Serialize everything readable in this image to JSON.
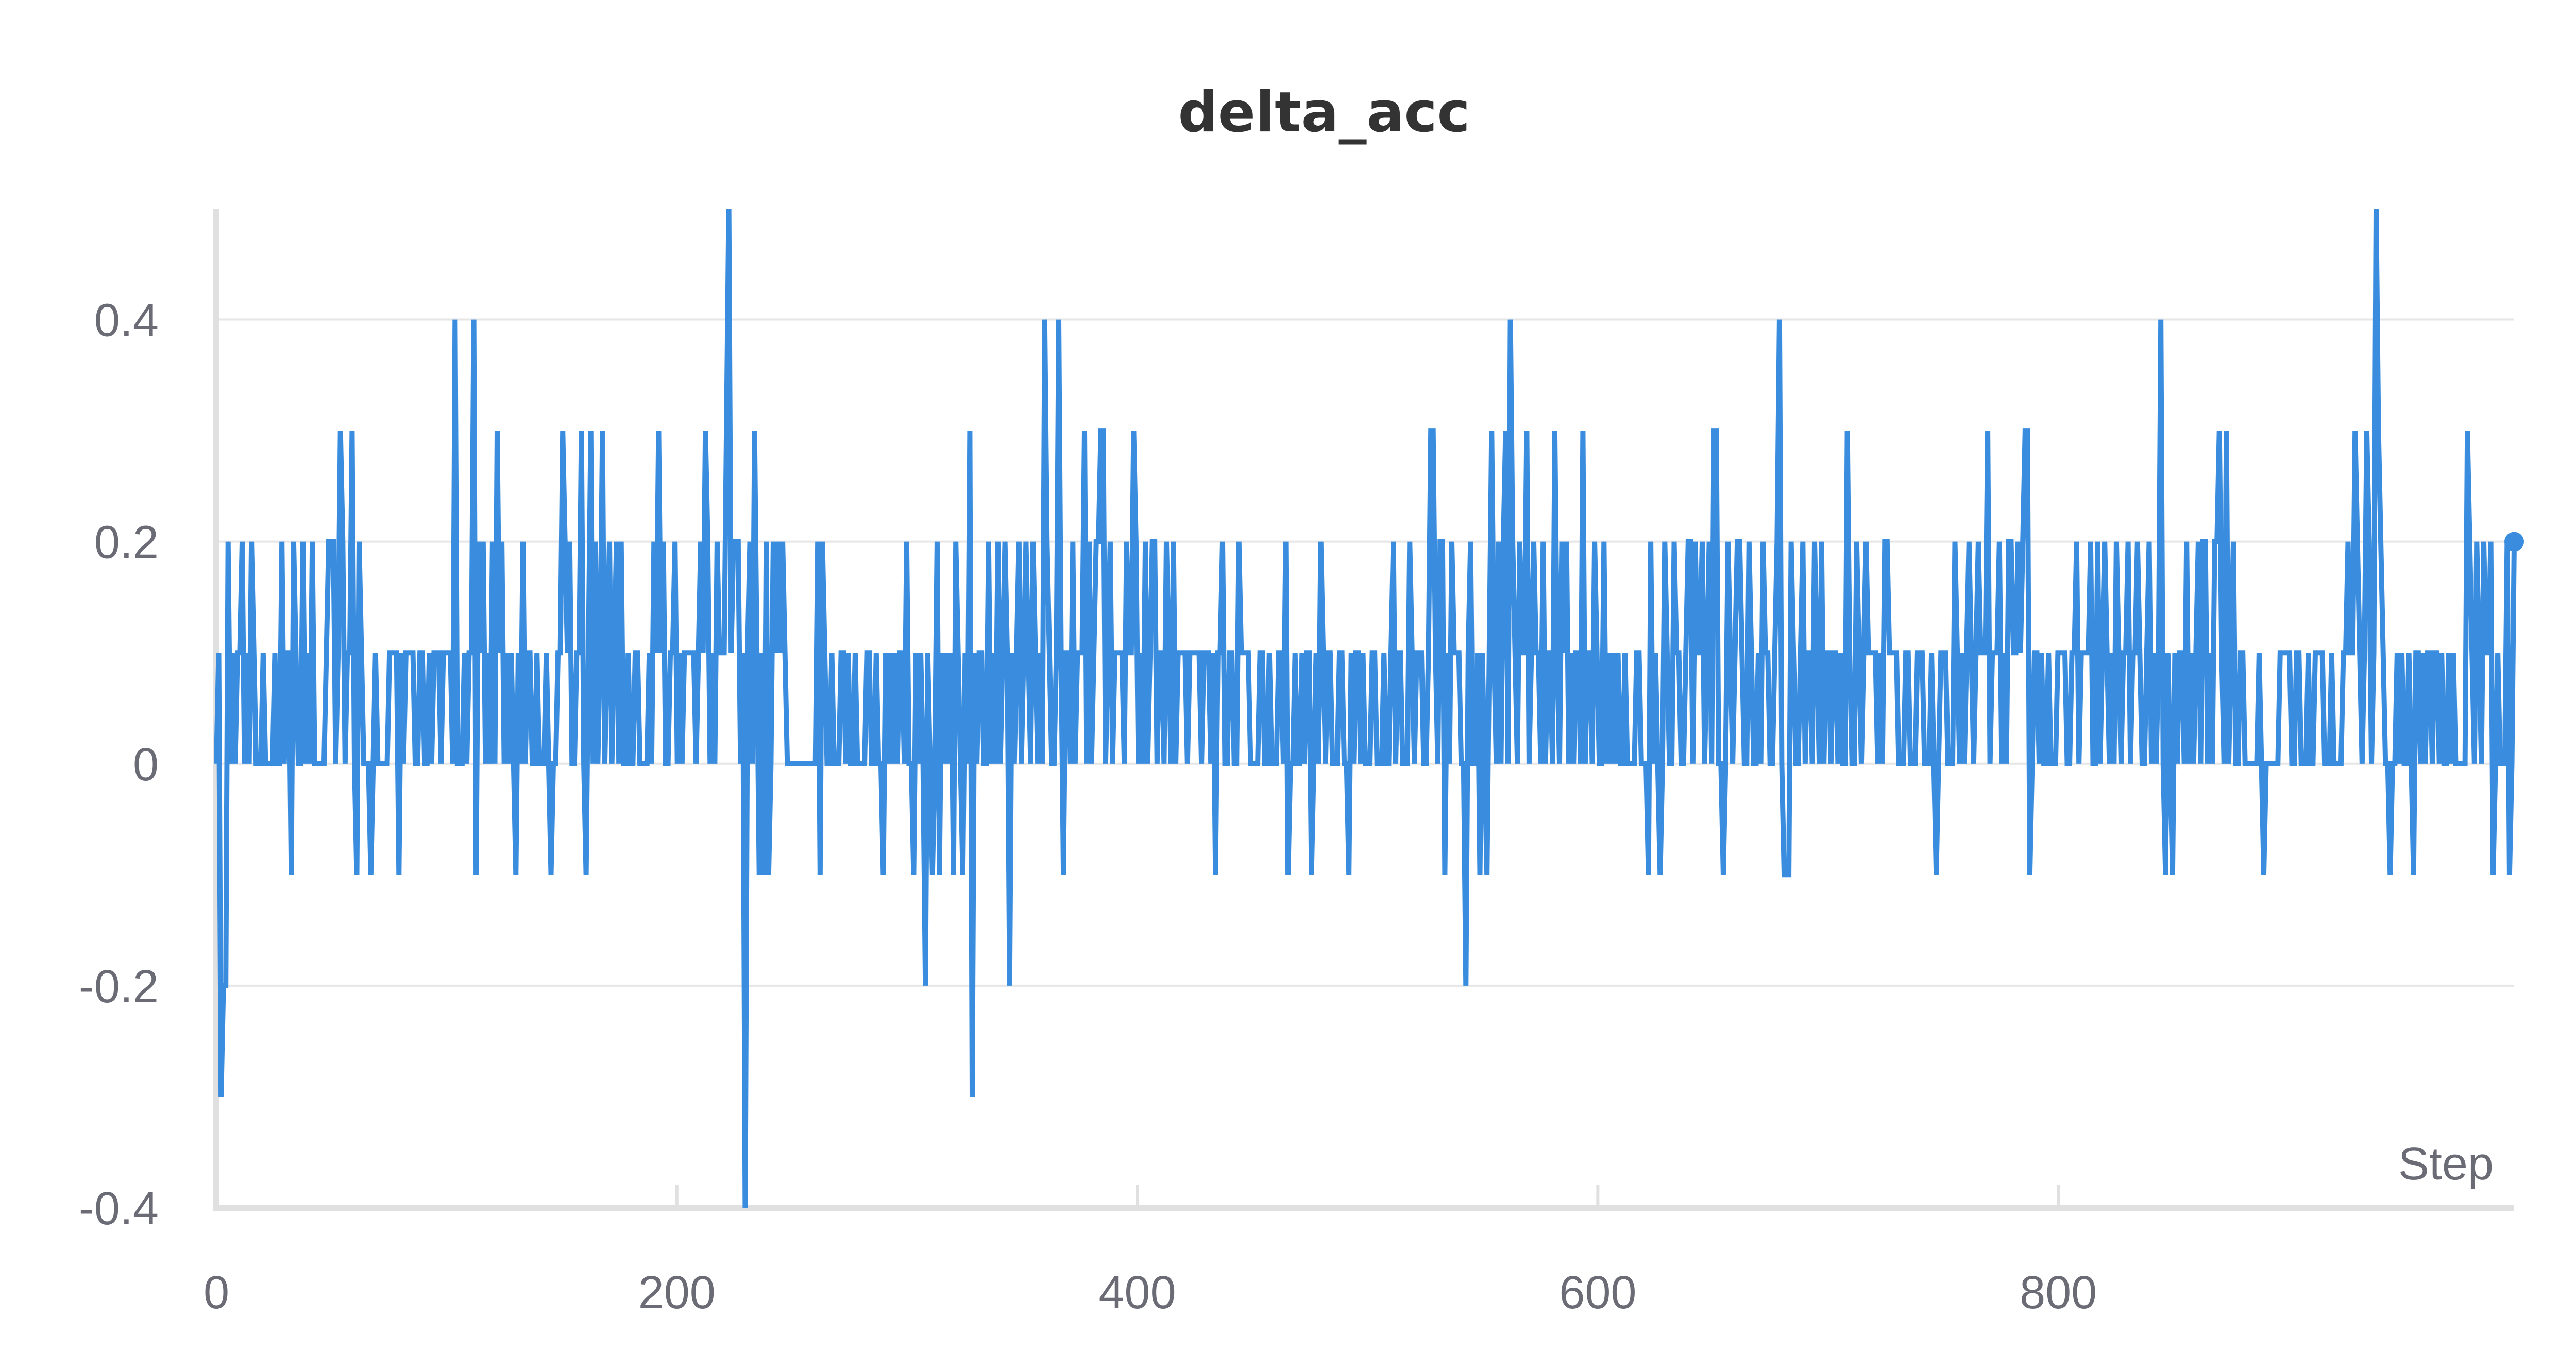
{
  "chart_data": {
    "type": "line",
    "title": "delta_acc",
    "xlabel": "Step",
    "ylabel": "",
    "xlim": [
      0,
      998
    ],
    "ylim": [
      -0.4,
      0.5
    ],
    "yticks": [
      0.4,
      0.2,
      0,
      -0.2,
      -0.4
    ],
    "ytick_labels": [
      "0.4",
      "0.2",
      "0",
      "-0.2",
      "-0.4"
    ],
    "xticks": [
      0,
      200,
      400,
      600,
      800
    ],
    "xtick_labels": [
      "0",
      "200",
      "400",
      "600",
      "800"
    ],
    "grid": true,
    "legend": "none",
    "line_color": "#3a8dde",
    "grid_color": "#e6e6e6",
    "axis_color": "#e0e0e0",
    "series": [
      {
        "values": [
          0,
          0.1,
          -0.3,
          -0.2,
          -0.2,
          0.2,
          0,
          0.1,
          0,
          0.1,
          0.1,
          0.2,
          0,
          0.1,
          0,
          0.2,
          0.1,
          0,
          0,
          0,
          0.1,
          0,
          0,
          0,
          0,
          0.1,
          0,
          0,
          0.2,
          0,
          0.1,
          0.1,
          -0.1,
          0.2,
          0.1,
          0,
          0,
          0.2,
          0,
          0.1,
          0,
          0.2,
          0,
          0,
          0,
          0,
          0,
          0.1,
          0.2,
          0.2,
          0.2,
          0,
          0.1,
          0.3,
          0.2,
          0,
          0.1,
          0.1,
          0.3,
          0,
          -0.1,
          0.2,
          0.1,
          0,
          0,
          0,
          -0.1,
          0,
          0.1,
          0,
          0,
          0,
          0,
          0,
          0.1,
          0.1,
          0.1,
          0.1,
          -0.1,
          0.1,
          0,
          0.1,
          0.1,
          0.1,
          0.1,
          0,
          0,
          0.1,
          0.1,
          0,
          0,
          0.1,
          0,
          0.1,
          0.1,
          0.1,
          0,
          0.1,
          0.1,
          0.1,
          0.1,
          0,
          0.4,
          0,
          0,
          0,
          0.1,
          0,
          0.1,
          0.1,
          0.4,
          -0.1,
          0.2,
          0.1,
          0.2,
          0,
          0.1,
          0,
          0.2,
          0,
          0.3,
          0.1,
          0.2,
          0,
          0.1,
          0,
          0.1,
          0,
          -0.1,
          0.1,
          0,
          0.2,
          0,
          0.1,
          0.1,
          0,
          0,
          0.1,
          0,
          0,
          0,
          0.1,
          0,
          -0.1,
          0,
          0,
          0.1,
          0.1,
          0.3,
          0.2,
          0.1,
          0.2,
          0,
          0,
          0.1,
          0.1,
          0.3,
          0,
          -0.1,
          0.1,
          0.3,
          0,
          0.2,
          0,
          0.1,
          0.3,
          0,
          0.1,
          0.2,
          0,
          0.1,
          0.2,
          0,
          0.2,
          0,
          0,
          0.1,
          0,
          0,
          0.1,
          0.1,
          0,
          0,
          0,
          0,
          0.1,
          0,
          0.2,
          0.1,
          0.3,
          0.1,
          0.2,
          0,
          0,
          0.1,
          0.1,
          0.2,
          0,
          0.1,
          0,
          0.1,
          0.1,
          0.1,
          0.1,
          0.1,
          0,
          0.1,
          0.2,
          0.1,
          0.3,
          0.2,
          0,
          0.1,
          0,
          0.2,
          0.1,
          0.1,
          0.1,
          0.3,
          0.5,
          0.1,
          0.2,
          0.2,
          0.2,
          0,
          0.1,
          -0.4,
          0.1,
          0.2,
          0,
          0.3,
          0.1,
          -0.1,
          0.1,
          -0.1,
          0.2,
          -0.1,
          0,
          0.2,
          0.1,
          0.2,
          0.1,
          0.2,
          0.1,
          0,
          0,
          0,
          0,
          0,
          0,
          0,
          0,
          0,
          0,
          0,
          0,
          0,
          0.2,
          -0.1,
          0.2,
          0.1,
          0,
          0,
          0.1,
          0,
          0,
          0,
          0.1,
          0.1,
          0,
          0.1,
          0,
          0,
          0.1,
          0,
          0,
          0,
          0,
          0.1,
          0.1,
          0,
          0,
          0.1,
          0,
          0,
          -0.1,
          0.1,
          0,
          0.1,
          0,
          0.1,
          0,
          0.1,
          0.1,
          0,
          0.2,
          0,
          0,
          -0.1,
          0.1,
          0,
          0.1,
          0,
          -0.2,
          0.1,
          0,
          -0.1,
          0,
          0.2,
          -0.1,
          0.1,
          0,
          0.1,
          0,
          0.1,
          -0.1,
          0.2,
          0.1,
          0,
          -0.1,
          0.1,
          0,
          0.3,
          -0.3,
          0.1,
          0,
          0.1,
          0.1,
          0,
          0,
          0.2,
          0,
          0.1,
          0,
          0.2,
          0,
          0.1,
          0.2,
          0.1,
          -0.2,
          0.1,
          0,
          0.1,
          0.2,
          0,
          0.1,
          0.2,
          0.1,
          0,
          0.2,
          0.1,
          0,
          0.1,
          0,
          0.4,
          0.2,
          0.1,
          0,
          0,
          0.1,
          0.4,
          0.1,
          -0.1,
          0.1,
          0.1,
          0,
          0.2,
          0,
          0.1,
          0.1,
          0.1,
          0.3,
          0,
          0.2,
          0,
          0.1,
          0.2,
          0.2,
          0.3,
          0.3,
          0,
          0.1,
          0.2,
          0,
          0.1,
          0.1,
          0.1,
          0.1,
          0,
          0.2,
          0.1,
          0.1,
          0.3,
          0.2,
          0,
          0.1,
          0,
          0.2,
          0,
          0.1,
          0.2,
          0.2,
          0,
          0.1,
          0.1,
          0,
          0.2,
          0.1,
          0,
          0.2,
          0,
          0.1,
          0.1,
          0.1,
          0.1,
          0,
          0.1,
          0.1,
          0.1,
          0.1,
          0.1,
          0,
          0.1,
          0.1,
          0.1,
          0,
          0.1,
          -0.1,
          0.1,
          0.1,
          0.2,
          0,
          0,
          0.1,
          0.1,
          0,
          0,
          0.2,
          0.1,
          0.1,
          0.1,
          0.1,
          0,
          0,
          0,
          0,
          0.1,
          0.1,
          0,
          0,
          0.1,
          0,
          0,
          0,
          0.1,
          0.1,
          0,
          0.2,
          -0.1,
          0,
          0,
          0.1,
          0,
          0,
          0.1,
          0,
          0.1,
          0.1,
          -0.1,
          0,
          0.1,
          0,
          0.2,
          0.1,
          0,
          0.1,
          0.1,
          0,
          0,
          0,
          0.1,
          0.1,
          0,
          0,
          -0.1,
          0.1,
          0,
          0.1,
          0.1,
          0,
          0.1,
          0,
          0,
          0,
          0.1,
          0.1,
          0,
          0,
          0,
          0.1,
          0,
          0,
          0.1,
          0.2,
          0,
          0.1,
          0.1,
          0,
          0,
          0,
          0.2,
          0.1,
          0,
          0.1,
          0.1,
          0.1,
          0,
          0,
          0.1,
          0.3,
          0.3,
          0.1,
          0,
          0.2,
          0.2,
          -0.1,
          0.1,
          0,
          0.2,
          0.1,
          0.1,
          0.1,
          0,
          0,
          -0.2,
          0.1,
          0.2,
          0,
          0,
          0.1,
          -0.1,
          0.1,
          0,
          -0.1,
          0.1,
          0.3,
          0.1,
          0,
          0.2,
          0,
          0.2,
          0.3,
          0,
          0.4,
          0.2,
          0.1,
          0,
          0.2,
          0.1,
          0.1,
          0.3,
          0,
          0.1,
          0.2,
          0.1,
          0.1,
          0,
          0.2,
          0,
          0.1,
          0.1,
          0,
          0.3,
          0.1,
          0,
          0.2,
          0.1,
          0.2,
          0,
          0.1,
          0,
          0.1,
          0.1,
          0,
          0.3,
          0,
          0.1,
          0.1,
          0,
          0.2,
          0.1,
          0,
          0,
          0.2,
          0,
          0.1,
          0,
          0.1,
          0,
          0.1,
          0,
          0,
          0.1,
          0,
          0,
          0,
          0,
          0.1,
          0.1,
          0,
          0,
          0,
          -0.1,
          0.2,
          0,
          0.1,
          0,
          -0.1,
          0,
          0.2,
          0.1,
          0,
          0,
          0.2,
          0.1,
          0.1,
          0,
          0,
          0.1,
          0.2,
          0.2,
          0,
          0.2,
          0.1,
          0.1,
          0.2,
          0,
          0.1,
          0.2,
          0,
          0.3,
          0.3,
          0,
          0,
          -0.1,
          0,
          0.2,
          0.1,
          0,
          0.1,
          0.2,
          0.2,
          0.1,
          0,
          0,
          0.2,
          0.1,
          0,
          0,
          0.1,
          0,
          0.2,
          0.1,
          0.1,
          0,
          0,
          0.1,
          0.2,
          0.4,
          0,
          -0.1,
          -0.1,
          -0.1,
          0.2,
          0.1,
          0,
          0,
          0.1,
          0.2,
          0,
          0.1,
          0.1,
          0,
          0.2,
          0.1,
          0,
          0.2,
          0,
          0.1,
          0.1,
          0,
          0.1,
          0.1,
          0,
          0.1,
          0,
          0,
          0.3,
          0.1,
          0,
          0,
          0.2,
          0.1,
          0,
          0.1,
          0.2,
          0.1,
          0.1,
          0.1,
          0.1,
          0,
          0.1,
          0,
          0.2,
          0.2,
          0.1,
          0.1,
          0.1,
          0.1,
          0,
          0,
          0,
          0.1,
          0.1,
          0,
          0,
          0,
          0.1,
          0.1,
          0.1,
          0,
          0,
          0,
          0.1,
          0,
          -0.1,
          0,
          0.1,
          0.1,
          0.1,
          0,
          0,
          0,
          0.2,
          0.1,
          0,
          0.1,
          0,
          0.1,
          0.2,
          0.1,
          0,
          0.1,
          0.2,
          0.1,
          0.1,
          0.1,
          0.3,
          0,
          0.1,
          0.1,
          0.1,
          0.2,
          0,
          0.1,
          0,
          0.2,
          0.2,
          0.1,
          0.1,
          0.2,
          0.1,
          0.2,
          0.3,
          0.3,
          -0.1,
          0,
          0.1,
          0.1,
          0,
          0.1,
          0,
          0,
          0.1,
          0,
          0,
          0,
          0.1,
          0.1,
          0.1,
          0.1,
          0,
          0,
          0.1,
          0.1,
          0.2,
          0,
          0.1,
          0.1,
          0.1,
          0.1,
          0.2,
          0,
          0,
          0.2,
          0,
          0.1,
          0.2,
          0.1,
          0,
          0.1,
          0,
          0.2,
          0.1,
          0,
          0.1,
          0.1,
          0.2,
          0,
          0.1,
          0.1,
          0.2,
          0.1,
          0,
          0,
          0.1,
          0.2,
          0,
          0.1,
          0,
          0.1,
          0.4,
          0,
          -0.1,
          0.1,
          0,
          -0.1,
          0.1,
          0,
          0.1,
          0.1,
          0,
          0.2,
          0,
          0.1,
          0,
          0.1,
          0.2,
          0,
          0.2,
          0.2,
          0,
          0.1,
          0,
          0.2,
          0.2,
          0.3,
          0.1,
          0,
          0.3,
          0,
          0.1,
          0.2,
          0,
          0,
          0.1,
          0.1,
          0,
          0,
          0,
          0,
          0,
          0,
          0.1,
          0,
          -0.1,
          0,
          0,
          0,
          0,
          0,
          0,
          0.1,
          0.1,
          0.1,
          0.1,
          0.1,
          0,
          0,
          0.1,
          0.1,
          0,
          0,
          0,
          0.1,
          0,
          0,
          0.1,
          0.1,
          0.1,
          0.1,
          0,
          0,
          0,
          0.1,
          0,
          0,
          0,
          0,
          0.1,
          0.1,
          0.2,
          0.1,
          0.1,
          0.3,
          0.2,
          0.1,
          0,
          0.1,
          0.3,
          0.2,
          0,
          0.1,
          0.5,
          0.3,
          0.2,
          0.1,
          0,
          0,
          -0.1,
          0,
          0,
          0.1,
          0,
          0.1,
          0,
          0,
          0.1,
          0,
          -0.1,
          0.1,
          0.1,
          0,
          0.1,
          0,
          0.1,
          0.1,
          0,
          0.1,
          0.1,
          0,
          0.1,
          0,
          0,
          0.1,
          0,
          0.1,
          0,
          0,
          0,
          0,
          0,
          0.3,
          0.2,
          0.1,
          0,
          0.2,
          0.1,
          0,
          0.2,
          0.1,
          0.1,
          0.2,
          -0.1,
          0,
          0.1,
          0,
          0,
          0,
          0.2,
          -0.1,
          0,
          0.2
        ]
      }
    ]
  }
}
